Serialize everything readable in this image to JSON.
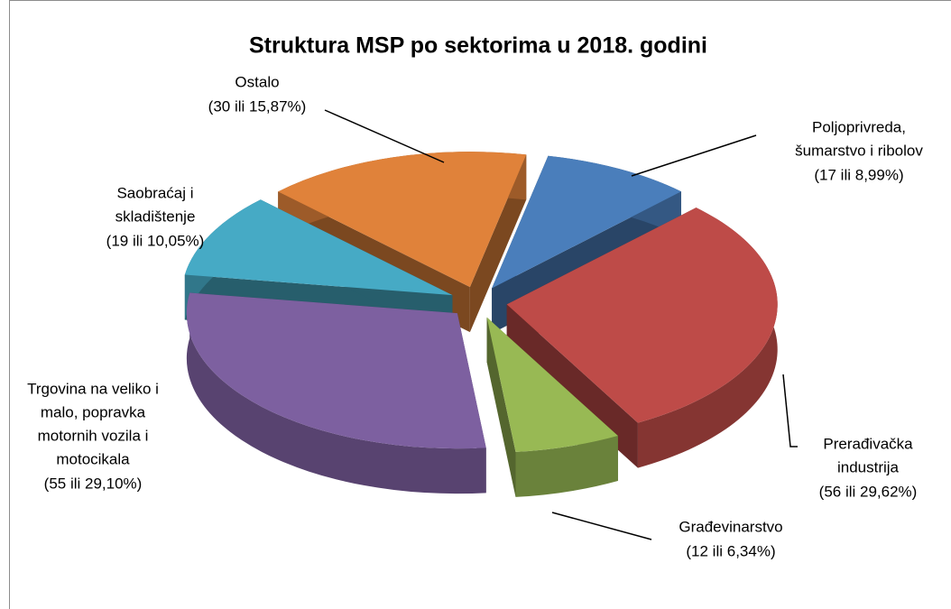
{
  "chart_data": {
    "type": "pie",
    "title": "Struktura MSP po sektorima u 2018. godini",
    "categories": [
      [
        "Poljoprivreda,",
        "šumarstvo i ribolov"
      ],
      [
        "Prerađivačka",
        "industrija"
      ],
      [
        "Građevinarstvo"
      ],
      [
        "Trgovina na veliko i",
        "malo, popravka",
        "motornih vozila i",
        "motocikala"
      ],
      [
        "Saobraćaj i",
        "skladištenje"
      ],
      [
        "Ostalo"
      ]
    ],
    "values": [
      17,
      56,
      12,
      55,
      19,
      30
    ],
    "value_labels": [
      "(17 ili 8,99%)",
      "(56 ili 29,62%)",
      "(12 ili 6,34%)",
      "(55 ili 29,10%)",
      "(19 ili 10,05%)",
      "(30 ili 15,87%)"
    ],
    "colors": [
      "#4a7ebb",
      "#be4b48",
      "#98b954",
      "#7d60a0",
      "#46aac5",
      "#e0823a"
    ]
  }
}
